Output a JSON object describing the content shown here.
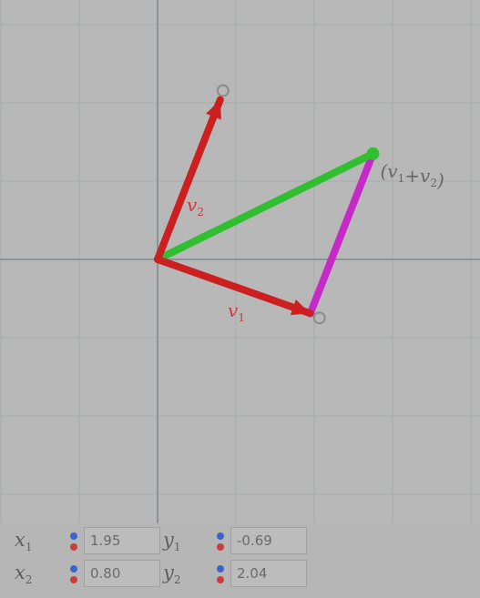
{
  "plot": {
    "units_per_tick": 1,
    "origin_value": [
      0,
      0
    ],
    "colors": {
      "background": "#b8b8b8",
      "grid": "#a6acad",
      "axis": "#8a9496",
      "vector_red": "#cc1f1f",
      "vector_green": "#2fbf2f",
      "vector_magenta": "#c62ac6",
      "label_red": "#cc3a3a",
      "label_gray": "#666666"
    },
    "vectors": {
      "v1": {
        "label": "v",
        "sub": "1",
        "x": 1.95,
        "y": -0.69
      },
      "v2": {
        "label": "v",
        "sub": "2",
        "x": 0.8,
        "y": 2.04
      },
      "sum": {
        "label": "(v",
        "sub1": "1",
        "mid": "+v",
        "sub2": "2",
        "tail": ")"
      }
    }
  },
  "controls": {
    "x1": {
      "label": "x",
      "sub": "1",
      "value": "1.95"
    },
    "y1": {
      "label": "y",
      "sub": "1",
      "value": "-0.69"
    },
    "x2": {
      "label": "x",
      "sub": "2",
      "value": "0.80"
    },
    "y2": {
      "label": "y",
      "sub": "2",
      "value": "2.04"
    }
  }
}
